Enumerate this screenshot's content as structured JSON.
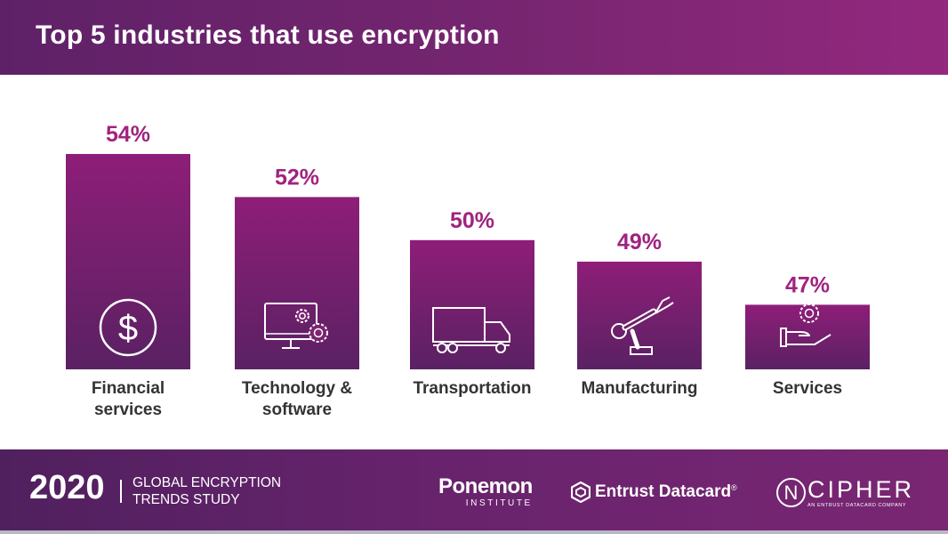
{
  "header": {
    "title": "Top 5 industries that use encryption"
  },
  "colors": {
    "bar_top": "#8e1e78",
    "bar_bottom": "#5a2163",
    "value_label": "#a0237f",
    "category_label": "#333333"
  },
  "chart_data": {
    "type": "bar",
    "title": "Top 5 industries that use encryption",
    "categories": [
      "Financial\nservices",
      "Technology &\nsoftware",
      "Transportation",
      "Manufacturing",
      "Services"
    ],
    "values": [
      54,
      52,
      50,
      49,
      47
    ],
    "value_labels": [
      "54%",
      "52%",
      "50%",
      "49%",
      "47%"
    ],
    "icons": [
      "dollar-icon",
      "computer-gears-icon",
      "truck-icon",
      "robot-arm-icon",
      "hand-gear-icon"
    ],
    "xlabel": "",
    "ylabel": "",
    "grid": false,
    "legend": "none"
  },
  "footer": {
    "year": "2020",
    "study_line1": "GLOBAL ENCRYPTION",
    "study_line2": "TRENDS STUDY",
    "ponemon_main": "Ponemon",
    "ponemon_sub": "INSTITUTE",
    "entrust": "Entrust Datacard",
    "entrust_mark": "®",
    "ncipher_letter": "N",
    "ncipher": "CIPHER",
    "ncipher_tagline": "AN ENTRUST DATACARD COMPANY"
  }
}
